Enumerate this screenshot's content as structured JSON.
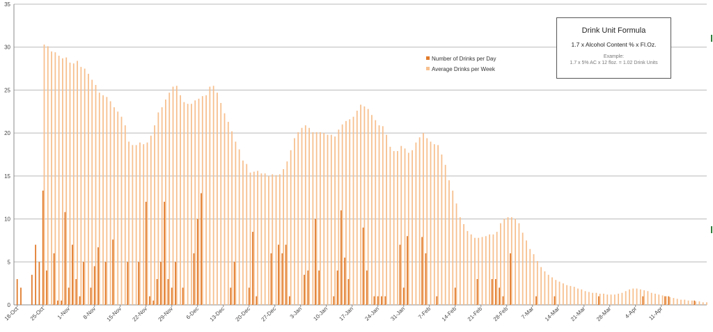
{
  "chart_data": {
    "type": "bar",
    "start_date": "18-Oct",
    "ylim": [
      0,
      35
    ],
    "y_ticks": [
      0,
      5,
      10,
      15,
      20,
      25,
      30,
      35
    ],
    "grid": "horizontal",
    "legend_position": "upper-middle",
    "x_tick_labels": [
      "18-Oct",
      "25-Oct",
      "1-Nov",
      "8-Nov",
      "15-Nov",
      "22-Nov",
      "29-Nov",
      "6-Dec",
      "13-Dec",
      "20-Dec",
      "27-Dec",
      "3-Jan",
      "10-Jan",
      "17-Jan",
      "24-Jan",
      "31-Jan",
      "7-Feb",
      "14-Feb",
      "21-Feb",
      "28-Feb",
      "7-Mar",
      "14-Mar",
      "21-Mar",
      "28-Mar",
      "4-Apr",
      "11-Apr"
    ],
    "series": [
      {
        "name": "Number of Drinks per Day",
        "color": "#e07b2c",
        "values": [
          3,
          2,
          0,
          0,
          3.5,
          7,
          5,
          13.3,
          4,
          0,
          6,
          0.5,
          0.5,
          10.8,
          2,
          7,
          3,
          1,
          5,
          0,
          2,
          4.5,
          6.7,
          0,
          5,
          0,
          7.6,
          0,
          0,
          0,
          5,
          0,
          0,
          5,
          0,
          12,
          1,
          0.5,
          3,
          5,
          12,
          3,
          2,
          5,
          0,
          2,
          0,
          0,
          6,
          10,
          13,
          0,
          0,
          0,
          0,
          0,
          0,
          0,
          2,
          5,
          0,
          0,
          0,
          2,
          8.5,
          1,
          0,
          0,
          0,
          6,
          0,
          7,
          6,
          7,
          1,
          0,
          0,
          0,
          3.5,
          4,
          0,
          10,
          4,
          0,
          0,
          0,
          1,
          4,
          11,
          5.5,
          3,
          0,
          0,
          0,
          9,
          4,
          0,
          1,
          1,
          1,
          1,
          0,
          0,
          0,
          7,
          2,
          8,
          0,
          0,
          0,
          7.9,
          6,
          0,
          0,
          1,
          0,
          0,
          0,
          0,
          2,
          0,
          0,
          0,
          0,
          0,
          3,
          0,
          0,
          0,
          3,
          3,
          2,
          1,
          0,
          6,
          0,
          0,
          0,
          0,
          0,
          0,
          1,
          0,
          0,
          0,
          0,
          1,
          0,
          0,
          0,
          0,
          0,
          0,
          0,
          0,
          0,
          0,
          0,
          1,
          0,
          0,
          0,
          0,
          0,
          0,
          0,
          0,
          0,
          0,
          0,
          1,
          0,
          0,
          0,
          0,
          0,
          1,
          1,
          0,
          0,
          0,
          0,
          0,
          0,
          0.5,
          0,
          0,
          0,
          0,
          0,
          0,
          0,
          0,
          0,
          0,
          0,
          0,
          0,
          0,
          0
        ]
      },
      {
        "name": "Average Drinks per Week",
        "color": "#f7c08f",
        "values": [
          0,
          0,
          0,
          0,
          0,
          0,
          0,
          30.3,
          30.1,
          29.5,
          29.4,
          29,
          28.7,
          28.8,
          28.2,
          28.1,
          28.4,
          27.7,
          27.5,
          26.9,
          26.2,
          25.6,
          24.7,
          24.4,
          24.2,
          23.7,
          23,
          22.5,
          21.9,
          20.9,
          19,
          18.6,
          18.6,
          18.9,
          18.7,
          18.9,
          19.7,
          20.9,
          22.4,
          23,
          23.9,
          24.7,
          25.4,
          25.5,
          24.4,
          23.6,
          23.4,
          23.4,
          23.8,
          24,
          24.3,
          24.4,
          25.4,
          25.5,
          24.7,
          23.5,
          22.3,
          21.3,
          20.2,
          19,
          18.1,
          16.8,
          16.4,
          15.4,
          15.5,
          15.6,
          15.3,
          15.3,
          15,
          15.2,
          15.1,
          15.2,
          15.8,
          16.7,
          18,
          19.4,
          20.1,
          20.6,
          20.9,
          20.6,
          20.1,
          20.1,
          20.1,
          20,
          19.8,
          19.8,
          19.6,
          20.4,
          21,
          21.4,
          21.6,
          21.9,
          22.6,
          23.3,
          23.1,
          22.8,
          22.1,
          21.5,
          20.9,
          20.8,
          19.8,
          18.4,
          17.9,
          17.9,
          18.5,
          18.2,
          17.7,
          18,
          18.9,
          19.5,
          20,
          19.4,
          19,
          18.7,
          18.6,
          17.5,
          16.3,
          14.5,
          13.3,
          11.8,
          10.2,
          9.4,
          8.6,
          8.2,
          7.8,
          7.8,
          7.9,
          8,
          8.2,
          8.2,
          8.5,
          9.5,
          10,
          10.2,
          10.2,
          10,
          9.5,
          8.4,
          7.5,
          6.5,
          5.9,
          5.1,
          4.4,
          3.9,
          3.5,
          3.2,
          2.9,
          2.7,
          2.5,
          2.3,
          2.2,
          2.1,
          1.9,
          1.8,
          1.6,
          1.5,
          1.4,
          1.4,
          1.3,
          1.3,
          1.2,
          1.2,
          1.2,
          1.3,
          1.4,
          1.6,
          1.8,
          1.9,
          1.9,
          1.8,
          1.7,
          1.6,
          1.4,
          1.3,
          1.2,
          1.1,
          1,
          0.9,
          0.8,
          0.7,
          0.6,
          0.6,
          0.5,
          0.5,
          0.4,
          0.4,
          0.3,
          0.3
        ]
      }
    ]
  },
  "formula": {
    "title": "Drink Unit Formula",
    "line": "1.7 x Alcohol Content % x Fl.Oz.",
    "example_label": "Example:",
    "example": "1.7  x  5% AC  x 12 floz.  = 1.02 Drink Units"
  }
}
